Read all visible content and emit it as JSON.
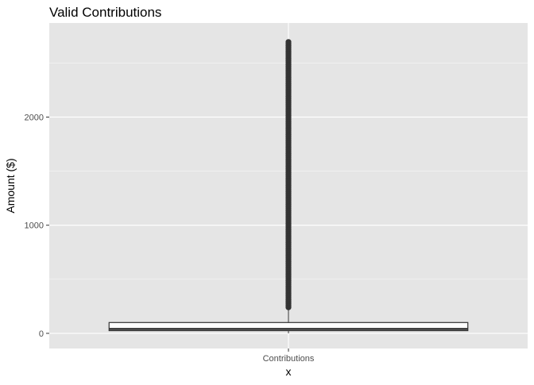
{
  "chart_data": {
    "type": "boxplot",
    "title": "Valid Contributions",
    "xlabel": "x",
    "ylabel": "Amount ($)",
    "categories": [
      "Contributions"
    ],
    "yticks": [
      0,
      1000,
      2000
    ],
    "ylim": [
      -140,
      2870
    ],
    "grid": true,
    "legend": "none",
    "boxes": [
      {
        "category": "Contributions",
        "min": 0,
        "q1": 25,
        "median": 40,
        "q3": 100,
        "whisker_low": 0,
        "whisker_high": 240,
        "outliers_from": 240,
        "outliers_to": 2700
      }
    ],
    "colors": {
      "panel": "#e5e5e5",
      "grid_major": "#ffffff",
      "box_fill": "#ffffff",
      "line": "#333333"
    }
  }
}
